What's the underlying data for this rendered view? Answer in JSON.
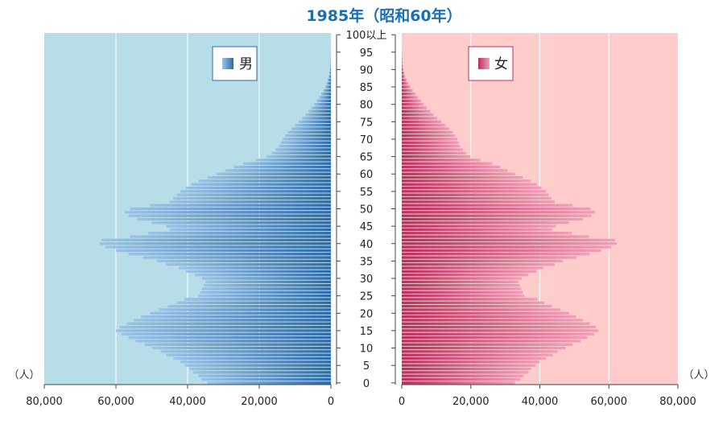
{
  "chart_data": {
    "type": "bar",
    "title": "1985年（昭和60年）",
    "unit_left": "（人）",
    "unit_right": "（人）",
    "colors": {
      "title": "#1a6fb5",
      "male_bg": "#b6dde8",
      "female_bg": "#ffcccc",
      "male_bar": "#2e6aa8",
      "female_bar": "#b8305e",
      "grid": "#ffffff"
    },
    "legend": {
      "male": "男",
      "female": "女"
    },
    "age_tick_labels": [
      "0",
      "5",
      "10",
      "15",
      "20",
      "25",
      "30",
      "35",
      "40",
      "45",
      "50",
      "55",
      "60",
      "65",
      "70",
      "75",
      "80",
      "85",
      "90",
      "95",
      "100以上"
    ],
    "x_tick_labels_left": [
      "80,000",
      "60,000",
      "40,000",
      "20,000",
      "0"
    ],
    "x_tick_labels_right": [
      "0",
      "20,000",
      "40,000",
      "60,000",
      "80,000"
    ],
    "xlim": [
      0,
      80000
    ],
    "ages": [
      "0",
      "1",
      "2",
      "3",
      "4",
      "5",
      "6",
      "7",
      "8",
      "9",
      "10",
      "11",
      "12",
      "13",
      "14",
      "15",
      "16",
      "17",
      "18",
      "19",
      "20",
      "21",
      "22",
      "23",
      "24",
      "25",
      "26",
      "27",
      "28",
      "29",
      "30",
      "31",
      "32",
      "33",
      "34",
      "35",
      "36",
      "37",
      "38",
      "39",
      "40",
      "41",
      "42",
      "43",
      "44",
      "45",
      "46",
      "47",
      "48",
      "49",
      "50",
      "51",
      "52",
      "53",
      "54",
      "55",
      "56",
      "57",
      "58",
      "59",
      "60",
      "61",
      "62",
      "63",
      "64",
      "65",
      "66",
      "67",
      "68",
      "69",
      "70",
      "71",
      "72",
      "73",
      "74",
      "75",
      "76",
      "77",
      "78",
      "79",
      "80",
      "81",
      "82",
      "83",
      "84",
      "85",
      "86",
      "87",
      "88",
      "89",
      "90",
      "91",
      "92",
      "93",
      "94",
      "95",
      "96",
      "97",
      "98",
      "99",
      "100以上"
    ],
    "series": [
      {
        "name": "男",
        "values": [
          34500,
          36200,
          37000,
          38500,
          39500,
          40800,
          42000,
          44000,
          46000,
          47500,
          50000,
          52000,
          54500,
          56500,
          58500,
          60000,
          59000,
          57000,
          55000,
          53000,
          50500,
          48000,
          45500,
          43000,
          41000,
          37000,
          36500,
          36000,
          35500,
          35000,
          36000,
          38000,
          40500,
          42500,
          46000,
          48500,
          52500,
          56500,
          60000,
          63000,
          64500,
          64000,
          56000,
          51000,
          45000,
          46000,
          50000,
          54000,
          56500,
          57500,
          56000,
          50500,
          45000,
          44000,
          43000,
          42000,
          40500,
          39000,
          37000,
          34500,
          32000,
          29500,
          27000,
          24500,
          21000,
          18000,
          16500,
          15500,
          14500,
          14000,
          13500,
          12800,
          12000,
          11000,
          10000,
          9000,
          8000,
          7100,
          6300,
          5500,
          4700,
          4000,
          3300,
          2700,
          2100,
          1600,
          1200,
          900,
          600,
          400,
          250,
          170,
          110,
          70,
          40,
          25,
          15,
          10,
          5,
          3,
          3
        ]
      },
      {
        "name": "女",
        "values": [
          32800,
          34400,
          35300,
          36700,
          37500,
          38800,
          40000,
          41800,
          43700,
          45200,
          47500,
          49500,
          51800,
          53800,
          55700,
          57000,
          56200,
          54500,
          52500,
          50500,
          48500,
          46000,
          43500,
          41300,
          39300,
          35500,
          35000,
          34600,
          34200,
          33800,
          34800,
          36600,
          39000,
          41000,
          44300,
          46700,
          50600,
          54500,
          57800,
          60700,
          62300,
          61800,
          54200,
          49300,
          43600,
          44600,
          48500,
          52400,
          54900,
          56000,
          54700,
          49500,
          44300,
          43400,
          42600,
          41800,
          40500,
          39200,
          37400,
          35100,
          32800,
          30600,
          28500,
          26200,
          22800,
          19900,
          18600,
          17700,
          16900,
          16500,
          16100,
          15500,
          14800,
          13800,
          12700,
          11500,
          10300,
          9200,
          8300,
          7300,
          6400,
          5600,
          4700,
          4000,
          3200,
          2500,
          1900,
          1400,
          1000,
          700,
          450,
          300,
          200,
          130,
          80,
          50,
          30,
          20,
          10,
          6,
          6
        ]
      }
    ]
  }
}
